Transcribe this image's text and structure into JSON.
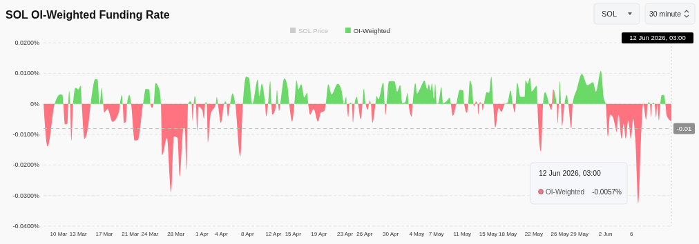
{
  "chart_data": {
    "type": "area",
    "title": "SOL OI-Weighted Funding Rate",
    "annotations": [
      "SOL",
      "30 minute",
      "12 Jun 2026, 03:00",
      "-0.0057%"
    ],
    "legend": "top",
    "grid": "y",
    "xlim": [
      "2026-03-07T16:00",
      "2026-06-12T03:00"
    ],
    "xticks": [
      {
        "value": "2026-03-10",
        "label": "10 Mar"
      },
      {
        "value": "2026-03-13",
        "label": "13 Mar"
      },
      {
        "value": "2026-03-17",
        "label": "17 Mar"
      },
      {
        "value": "2026-03-21",
        "label": "21 Mar"
      },
      {
        "value": "2026-03-24",
        "label": "24 Mar"
      },
      {
        "value": "2026-03-28",
        "label": "28 Mar"
      },
      {
        "value": "2026-04-01",
        "label": "1 Apr"
      },
      {
        "value": "2026-04-04",
        "label": "4 Apr"
      },
      {
        "value": "2026-04-08",
        "label": "8 Apr"
      },
      {
        "value": "2026-04-12",
        "label": "12 Apr"
      },
      {
        "value": "2026-04-15",
        "label": "15 Apr"
      },
      {
        "value": "2026-04-19",
        "label": "19 Apr"
      },
      {
        "value": "2026-04-23",
        "label": "23 Apr"
      },
      {
        "value": "2026-04-26",
        "label": "26 Apr"
      },
      {
        "value": "2026-04-30",
        "label": "30 Apr"
      },
      {
        "value": "2026-05-04",
        "label": "4 May"
      },
      {
        "value": "2026-05-07",
        "label": "7 May"
      },
      {
        "value": "2026-05-11",
        "label": "11 May"
      },
      {
        "value": "2026-05-15",
        "label": "15 May"
      },
      {
        "value": "2026-05-18",
        "label": "18 May"
      },
      {
        "value": "2026-05-22",
        "label": "22 May"
      },
      {
        "value": "2026-05-26",
        "label": "26 May"
      },
      {
        "value": "2026-05-29",
        "label": "29 May"
      },
      {
        "value": "2026-06-02",
        "label": "2 Jun"
      },
      {
        "value": "2026-06-06",
        "label": "6"
      }
    ],
    "ylim": [
      -0.04,
      0.02
    ],
    "yticks": [
      {
        "value": 0.02,
        "label": "0.0200%"
      },
      {
        "value": 0.01,
        "label": "0.0100%"
      },
      {
        "value": 0,
        "label": "0%"
      },
      {
        "value": -0.01,
        "label": "-0.0100%"
      },
      {
        "value": -0.02,
        "label": "-0.0200%"
      },
      {
        "value": -0.03,
        "label": "-0.0300%"
      },
      {
        "value": -0.04,
        "label": "-0.0400%"
      }
    ],
    "ref_lines": [
      {
        "axis": "y",
        "value": -0.0081,
        "label": "-0.01",
        "color": "#bbbbbb",
        "line_style": "dashed"
      },
      {
        "axis": "x",
        "value": "2026-06-12T03:00",
        "label": "12 Jun 2026, 03:00",
        "color": "#cccccc",
        "line_style": "dotted"
      }
    ],
    "x": [
      "2026-03-07T16:00",
      "2026-03-08T07:00",
      "2026-03-09T09:00",
      "2026-03-10T06:00",
      "2026-03-10T14:00",
      "2026-03-10T17:00",
      "2026-03-10T23:00",
      "2026-03-11T08:00",
      "2026-03-11T11:00",
      "2026-03-11T15:00",
      "2026-03-11T18:00",
      "2026-03-11T23:00",
      "2026-03-12T05:00",
      "2026-03-12T14:00",
      "2026-03-13T00:00",
      "2026-03-13T09:00",
      "2026-03-13T13:00",
      "2026-03-13T23:00",
      "2026-03-14T14:00",
      "2026-03-14T22:00",
      "2026-03-15T15:00",
      "2026-03-15T23:00",
      "2026-03-16T07:00",
      "2026-03-16T15:00",
      "2026-03-16T20:00",
      "2026-03-17T00:00",
      "2026-03-17T12:00",
      "2026-03-18T07:00",
      "2026-03-19T06:00",
      "2026-03-19T10:00",
      "2026-03-19T16:00",
      "2026-03-19T20:00",
      "2026-03-20T01:00",
      "2026-03-20T08:00",
      "2026-03-20T12:00",
      "2026-03-20T21:00",
      "2026-03-21T03:00",
      "2026-03-21T16:00",
      "2026-03-22T04:00",
      "2026-03-22T23:00",
      "2026-03-23T09:00",
      "2026-03-23T22:00",
      "2026-03-24T02:00",
      "2026-03-24T08:00",
      "2026-03-24T14:00",
      "2026-03-24T21:00",
      "2026-03-25T11:00",
      "2026-03-25T17:00",
      "2026-03-25T22:00",
      "2026-03-26T15:00",
      "2026-03-27T06:00",
      "2026-03-27T17:00",
      "2026-03-28T06:00",
      "2026-03-28T14:00",
      "2026-03-29T04:00",
      "2026-03-29T09:00",
      "2026-03-29T15:00",
      "2026-03-29T21:00",
      "2026-03-30T06:00",
      "2026-03-30T10:00",
      "2026-03-30T14:00",
      "2026-03-30T18:00",
      "2026-03-30T22:00",
      "2026-03-31T02:00",
      "2026-03-31T07:00",
      "2026-03-31T11:00",
      "2026-04-01T01:00",
      "2026-04-01T08:00",
      "2026-04-01T12:00",
      "2026-04-01T15:00",
      "2026-04-01T18:00",
      "2026-04-01T22:00",
      "2026-04-02T08:00",
      "2026-04-03T03:00",
      "2026-04-03T07:00",
      "2026-04-03T11:00",
      "2026-04-03T22:00",
      "2026-04-04T10:00",
      "2026-04-04T14:00",
      "2026-04-04T19:00",
      "2026-04-05T00:00",
      "2026-04-05T08:00",
      "2026-04-05T17:00",
      "2026-04-06T03:00",
      "2026-04-06T22:00",
      "2026-04-07T07:00",
      "2026-04-07T19:00",
      "2026-04-08T05:00",
      "2026-04-08T18:00",
      "2026-04-09T14:00",
      "2026-04-09T20:00",
      "2026-04-10T05:00",
      "2026-04-10T13:00",
      "2026-04-10T17:00",
      "2026-04-10T21:00",
      "2026-04-11T04:00",
      "2026-04-11T12:00",
      "2026-04-11T16:00",
      "2026-04-11T20:00",
      "2026-04-12T06:00",
      "2026-04-12T09:00",
      "2026-04-12T13:00",
      "2026-04-12T17:00",
      "2026-04-12T21:00",
      "2026-04-13T01:00",
      "2026-04-13T16:00",
      "2026-04-14T04:00",
      "2026-04-14T10:00",
      "2026-04-14T21:00",
      "2026-04-15T05:00",
      "2026-04-15T13:00",
      "2026-04-15T20:00",
      "2026-04-16T06:00",
      "2026-04-16T18:00",
      "2026-04-17T04:00",
      "2026-04-17T08:00",
      "2026-04-17T15:00",
      "2026-04-18T04:00",
      "2026-04-18T20:00",
      "2026-04-19T07:00",
      "2026-04-19T19:00",
      "2026-04-20T01:00",
      "2026-04-20T10:00",
      "2026-04-20T22:00",
      "2026-04-21T21:00",
      "2026-04-22T11:00",
      "2026-04-22T20:00",
      "2026-04-23T04:00",
      "2026-04-23T06:00",
      "2026-04-23T12:00",
      "2026-04-23T16:00",
      "2026-04-23T20:00",
      "2026-04-24T01:00",
      "2026-04-24T05:00",
      "2026-04-24T11:00",
      "2026-04-24T19:00",
      "2026-04-25T00:00",
      "2026-04-25T10:00",
      "2026-04-25T16:00",
      "2026-04-25T21:00",
      "2026-04-26T04:00",
      "2026-04-26T11:00",
      "2026-04-26T19:00",
      "2026-04-26T23:00",
      "2026-04-27T05:00",
      "2026-04-27T16:00",
      "2026-04-27T20:00",
      "2026-04-28T03:00",
      "2026-04-28T21:00",
      "2026-04-29T02:00",
      "2026-04-29T05:00",
      "2026-04-29T09:00",
      "2026-04-29T18:00",
      "2026-04-30T14:00",
      "2026-05-01T00:00",
      "2026-05-01T11:00",
      "2026-05-01T19:00",
      "2026-05-02T06:00",
      "2026-05-02T14:00",
      "2026-05-02T18:00",
      "2026-05-03T05:00",
      "2026-05-03T09:00",
      "2026-05-03T19:00",
      "2026-05-04T01:00",
      "2026-05-04T14:00",
      "2026-05-05T05:00",
      "2026-05-05T15:00",
      "2026-05-05T21:00",
      "2026-05-06T03:00",
      "2026-05-06T08:00",
      "2026-05-06T16:00",
      "2026-05-06T20:00",
      "2026-05-07T02:00",
      "2026-05-07T08:00",
      "2026-05-07T19:00",
      "2026-05-08T01:00",
      "2026-05-08T13:00",
      "2026-05-09T02:00",
      "2026-05-09T06:00",
      "2026-05-09T13:00",
      "2026-05-10T02:00",
      "2026-05-10T15:00",
      "2026-05-11T03:00",
      "2026-05-11T07:00",
      "2026-05-11T17:00",
      "2026-05-11T22:00",
      "2026-05-12T04:00",
      "2026-05-12T12:00",
      "2026-05-12T17:00",
      "2026-05-12T19:00",
      "2026-05-13T03:00",
      "2026-05-13T08:00",
      "2026-05-13T11:00",
      "2026-05-13T17:00",
      "2026-05-14T00:00",
      "2026-05-14T03:00",
      "2026-05-14T08:00",
      "2026-05-14T18:00",
      "2026-05-15T03:00",
      "2026-05-15T11:00",
      "2026-05-15T18:00",
      "2026-05-16T02:00",
      "2026-05-16T14:00",
      "2026-05-17T00:00",
      "2026-05-17T13:00",
      "2026-05-17T23:00",
      "2026-05-18T10:00",
      "2026-05-18T18:00",
      "2026-05-19T02:00",
      "2026-05-19T05:00",
      "2026-05-19T10:00",
      "2026-05-19T23:00",
      "2026-05-20T14:00",
      "2026-05-20T17:00",
      "2026-05-21T01:00",
      "2026-05-21T10:00",
      "2026-05-21T16:00",
      "2026-05-22T11:00",
      "2026-05-22T13:00",
      "2026-05-23T02:00",
      "2026-05-23T10:00",
      "2026-05-23T17:00",
      "2026-05-24T03:00",
      "2026-05-24T09:00",
      "2026-05-24T17:00",
      "2026-05-24T23:00",
      "2026-05-25T12:00",
      "2026-05-25T16:00",
      "2026-05-25T20:00",
      "2026-05-26T00:00",
      "2026-05-26T04:00",
      "2026-05-26T08:00",
      "2026-05-26T17:00",
      "2026-05-27T01:00",
      "2026-05-27T07:00",
      "2026-05-27T18:00",
      "2026-05-27T23:00",
      "2026-05-28T14:00",
      "2026-05-29T09:00",
      "2026-05-30T06:00",
      "2026-05-31T02:00",
      "2026-05-31T13:00",
      "2026-06-01T07:00",
      "2026-06-01T18:00",
      "2026-06-02T01:00",
      "2026-06-02T09:00",
      "2026-06-02T17:00",
      "2026-06-03T03:00",
      "2026-06-03T12:00",
      "2026-06-03T17:00",
      "2026-06-04T00:00",
      "2026-06-04T12:00",
      "2026-06-04T19:00",
      "2026-06-05T03:00",
      "2026-06-05T12:00",
      "2026-06-05T22:00",
      "2026-06-06T06:00",
      "2026-06-06T14:00",
      "2026-06-07T01:00",
      "2026-06-07T11:00",
      "2026-06-07T19:00",
      "2026-06-08T06:00",
      "2026-06-08T12:00",
      "2026-06-08T16:00",
      "2026-06-08T20:00",
      "2026-06-09T00:00",
      "2026-06-09T04:00",
      "2026-06-09T09:00",
      "2026-06-09T13:00",
      "2026-06-09T19:00",
      "2026-06-09T23:00",
      "2026-06-10T05:00",
      "2026-06-10T10:00",
      "2026-06-10T16:00",
      "2026-06-11T00:00",
      "2026-06-11T05:00",
      "2026-06-11T10:00",
      "2026-06-12T03:00"
    ],
    "series": [
      {
        "name": "SOL Price",
        "color": "#cccccc",
        "values": [
          null,
          null,
          null,
          null,
          null,
          null,
          null,
          null,
          null,
          null,
          null,
          null,
          null,
          null,
          null,
          null,
          null,
          null,
          null,
          null,
          null,
          null,
          null,
          null,
          null,
          null,
          null,
          null,
          null,
          null,
          null,
          null,
          null,
          null,
          null,
          null,
          null,
          null,
          null,
          null,
          null,
          null,
          null,
          null,
          null,
          null,
          null,
          null,
          null,
          null,
          null,
          null,
          null,
          null,
          null,
          null,
          null,
          null,
          null,
          null,
          null,
          null,
          null,
          null,
          null,
          null,
          null,
          null,
          null,
          null,
          null,
          null,
          null,
          null,
          null,
          null,
          null,
          null,
          null,
          null,
          null,
          null,
          null,
          null,
          null,
          null,
          null,
          null,
          null,
          null,
          null,
          null,
          null,
          null,
          null,
          null,
          null,
          null,
          null,
          null,
          null,
          null,
          null,
          null,
          null,
          null,
          null,
          null,
          null,
          null,
          null,
          null,
          null,
          null,
          null,
          null,
          null,
          null,
          null,
          null,
          null,
          null,
          null,
          null,
          null,
          null,
          null,
          null,
          null,
          null,
          null,
          null,
          null,
          null,
          null,
          null,
          null,
          null,
          null,
          null,
          null,
          null,
          null,
          null,
          null,
          null,
          null,
          null,
          null,
          null,
          null,
          null,
          null,
          null,
          null,
          null,
          null,
          null,
          null,
          null,
          null,
          null,
          null,
          null,
          null,
          null,
          null,
          null,
          null,
          null,
          null,
          null,
          null,
          null,
          null,
          null,
          null,
          null,
          null,
          null,
          null,
          null,
          null,
          null,
          null,
          null,
          null,
          null,
          null,
          null,
          null,
          null,
          null,
          null,
          null,
          null,
          null,
          null,
          null,
          null,
          null,
          null,
          null,
          null,
          null,
          null,
          null,
          null,
          null,
          null,
          null,
          null,
          null,
          null,
          null,
          null,
          null,
          null,
          null,
          null,
          null,
          null,
          null,
          null,
          null,
          null,
          null,
          null,
          null,
          null,
          null,
          null,
          null,
          null,
          null,
          null,
          null,
          null,
          null,
          null,
          null,
          null,
          null,
          null,
          null,
          null,
          null,
          null,
          null,
          null,
          null,
          null,
          null,
          null,
          null,
          null,
          null,
          null,
          null,
          null,
          null,
          null,
          null,
          null,
          null,
          null,
          null,
          null,
          null,
          null,
          null,
          null,
          null,
          null,
          null,
          null,
          null,
          null
        ]
      },
      {
        "name": "OI-Weighted",
        "color": "#6bd967",
        "colors": [
          "#ff7381",
          "#ff7381",
          "#6bd967",
          "#6bd967",
          "#6bd967",
          "#ff7381",
          "#ff7381",
          "#ff7381",
          "#6bd967",
          "#6bd967",
          "#ff7381",
          "#ff7381",
          "#6bd967",
          "#6bd967",
          "#6bd967",
          "#6bd967",
          "#ff7381",
          "#ff7381",
          "#ff7381",
          "#6bd967",
          "#6bd967",
          "#6bd967",
          "#6bd967",
          "#6bd967",
          "#ff7381",
          "#ff7381",
          "#ff7381",
          "#ff7381",
          "#ff7381",
          "#6bd967",
          "#6bd967",
          "#ff7381",
          "#ff7381",
          "#ff7381",
          "#6bd967",
          "#6bd967",
          "#ff7381",
          "#ff7381",
          "#ff7381",
          "#6bd967",
          "#6bd967",
          "#6bd967",
          "#ff7381",
          "#ff7381",
          "#6bd967",
          "#6bd967",
          "#6bd967",
          "#ff7381",
          "#ff7381",
          "#ff7381",
          "#ff7381",
          "#ff7381",
          "#ff7381",
          "#ff7381",
          "#ff7381",
          "#ff7381",
          "#ff7381",
          "#6bd967",
          "#6bd967",
          "#ff7381",
          "#ff7381",
          "#6bd967",
          "#6bd967",
          "#ff7381",
          "#ff7381",
          "#ff7381",
          "#ff7381",
          "#ff7381",
          "#6bd967",
          "#6bd967",
          "#ff7381",
          "#ff7381",
          "#ff7381",
          "#6bd967",
          "#6bd967",
          "#ff7381",
          "#ff7381",
          "#6bd967",
          "#6bd967",
          "#ff7381",
          "#ff7381",
          "#6bd967",
          "#6bd967",
          "#ff7381",
          "#ff7381",
          "#6bd967",
          "#6bd967",
          "#6bd967",
          "#6bd967",
          "#6bd967",
          "#6bd967",
          "#6bd967",
          "#6bd967",
          "#ff7381",
          "#ff7381",
          "#6bd967",
          "#6bd967",
          "#ff7381",
          "#ff7381",
          "#ff7381",
          "#6bd967",
          "#6bd967",
          "#ff7381",
          "#ff7381",
          "#6bd967",
          "#6bd967",
          "#6bd967",
          "#ff7381",
          "#ff7381",
          "#6bd967",
          "#6bd967",
          "#6bd967",
          "#6bd967",
          "#6bd967",
          "#6bd967",
          "#ff7381",
          "#ff7381",
          "#ff7381",
          "#ff7381",
          "#ff7381",
          "#ff7381",
          "#6bd967",
          "#6bd967",
          "#6bd967",
          "#6bd967",
          "#6bd967",
          "#6bd967",
          "#6bd967",
          "#ff7381",
          "#ff7381",
          "#6bd967",
          "#6bd967",
          "#ff7381",
          "#ff7381",
          "#6bd967",
          "#6bd967",
          "#ff7381",
          "#ff7381",
          "#6bd967",
          "#6bd967",
          "#ff7381",
          "#ff7381",
          "#6bd967",
          "#ff7381",
          "#ff7381",
          "#6bd967",
          "#6bd967",
          "#6bd967",
          "#6bd967",
          "#ff7381",
          "#ff7381",
          "#6bd967",
          "#6bd967",
          "#6bd967",
          "#6bd967",
          "#6bd967",
          "#6bd967",
          "#6bd967",
          "#6bd967",
          "#ff7381",
          "#ff7381",
          "#6bd967",
          "#6bd967",
          "#6bd967",
          "#6bd967",
          "#6bd967",
          "#6bd967",
          "#6bd967",
          "#6bd967",
          "#6bd967",
          "#6bd967",
          "#6bd967",
          "#6bd967",
          "#6bd967",
          "#6bd967",
          "#6bd967",
          "#6bd967",
          "#6bd967",
          "#ff7381",
          "#ff7381",
          "#6bd967",
          "#6bd967",
          "#6bd967",
          "#ff7381",
          "#ff7381",
          "#6bd967",
          "#6bd967",
          "#6bd967",
          "#ff7381",
          "#ff7381",
          "#6bd967",
          "#ff7381",
          "#ff7381",
          "#6bd967",
          "#ff7381",
          "#ff7381",
          "#6bd967",
          "#6bd967",
          "#6bd967",
          "#6bd967",
          "#ff7381",
          "#ff7381",
          "#ff7381",
          "#ff7381",
          "#6bd967",
          "#6bd967",
          "#6bd967",
          "#ff7381",
          "#ff7381",
          "#6bd967",
          "#6bd967",
          "#6bd967",
          "#6bd967",
          "#6bd967",
          "#6bd967",
          "#6bd967",
          "#6bd967",
          "#6bd967",
          "#ff7381",
          "#ff7381",
          "#6bd967",
          "#6bd967",
          "#6bd967",
          "#ff7381",
          "#ff7381",
          "#6bd967",
          "#ff7381",
          "#ff7381",
          "#6bd967",
          "#6bd967",
          "#ff7381",
          "#ff7381",
          "#6bd967",
          "#6bd967",
          "#ff7381",
          "#ff7381",
          "#6bd967",
          "#6bd967",
          "#6bd967",
          "#6bd967",
          "#6bd967",
          "#6bd967",
          "#6bd967",
          "#6bd967",
          "#ff7381",
          "#ff7381",
          "#ff7381",
          "#ff7381",
          "#ff7381",
          "#ff7381",
          "#ff7381",
          "#ff7381",
          "#ff7381",
          "#ff7381",
          "#ff7381",
          "#ff7381",
          "#ff7381",
          "#ff7381",
          "#ff7381",
          "#ff7381",
          "#ff7381",
          "#ff7381",
          "#6bd967",
          "#6bd967",
          "#ff7381",
          "#ff7381",
          "#6bd967",
          "#6bd967",
          "#ff7381",
          "#ff7381",
          "#ff7381",
          "#ff7381",
          "#6bd967",
          "#6bd967",
          "#6bd967",
          "#ff7381",
          "#ff7381",
          "#ff7381"
        ],
        "values": [
          0,
          -0.0139,
          0,
          0.0031,
          0.0029,
          0,
          -0.0067,
          -0.0065,
          0,
          0.0044,
          0,
          -0.012,
          0,
          0.0053,
          0.0047,
          0.0059,
          0,
          -0.0114,
          -0.0065,
          0,
          0.0081,
          0.008,
          0,
          0.0053,
          0,
          -0.0028,
          -0.0017,
          -0.0059,
          -0.0028,
          0,
          0.0029,
          0,
          -0.0062,
          -0.0058,
          0,
          0.0029,
          0,
          -0.012,
          -0.0118,
          0,
          0.0049,
          0.0047,
          0,
          -0.0013,
          0,
          0.0068,
          0.0047,
          0,
          -0.0167,
          -0.0111,
          -0.0289,
          -0.0107,
          -0.0111,
          -0.0238,
          -0.008,
          -0.008,
          -0.0217,
          0,
          0.0008,
          0,
          -0.0056,
          0,
          0.0026,
          0,
          -0.0089,
          -0.0009,
          -0.002,
          -0.0049,
          0,
          0.0006,
          0,
          -0.0126,
          -0.0035,
          0,
          0.0023,
          0,
          -0.0062,
          0,
          0.0008,
          0,
          -0.0041,
          0,
          0.0034,
          0,
          -0.0171,
          0,
          0.0089,
          0.0085,
          0,
          0.008,
          0.0025,
          0.0066,
          0.0032,
          0,
          -0.0041,
          0,
          0.0074,
          0,
          -0.0035,
          -0.002,
          0,
          0.0046,
          0,
          -0.0023,
          0,
          0.0083,
          0.0055,
          0,
          -0.0058,
          0,
          0.0077,
          0.0047,
          0.0064,
          0.0021,
          0.0036,
          0,
          -0.0035,
          -0.0017,
          -0.0058,
          -0.0028,
          -0.0024,
          0,
          0.0064,
          0.0031,
          0.0066,
          0.0044,
          0,
          0.0023,
          0,
          -0.0043,
          0,
          0.0004,
          0,
          -0.0062,
          0,
          0.0023,
          0,
          -0.005,
          0,
          0.005,
          0,
          -0.0019,
          0.0011,
          0,
          -0.0062,
          0,
          0.0026,
          0.0015,
          0.007,
          0,
          -0.0037,
          0,
          0.0074,
          0.0074,
          0.004,
          0.0061,
          0.0002,
          0.0006,
          0.0036,
          0,
          -0.0041,
          0,
          0.0068,
          0.0034,
          0.0053,
          0.0076,
          0.0047,
          0.0064,
          0.0044,
          0.0068,
          0.0016,
          0.0066,
          0,
          0.0002,
          0.0055,
          0.0002,
          0.0008,
          0.002,
          0,
          -0.0039,
          0,
          0.0046,
          0.0044,
          0,
          -0.0029,
          0,
          0.0076,
          0.0055,
          0,
          -0.0009,
          0.0008,
          0,
          -0.0035,
          0.0006,
          0,
          -0.0022,
          0,
          0.0038,
          0.0036,
          0.0089,
          0,
          -0.0077,
          -0.0013,
          -0.0026,
          0,
          0.0004,
          0.0044,
          0,
          -0.0029,
          0,
          0.007,
          0.0023,
          0.0023,
          0.0077,
          0.0066,
          0.0086,
          0.0041,
          0.0059,
          0,
          -0.0156,
          0,
          0.0038,
          0.0017,
          -0.0005,
          -0.002,
          0.0047,
          0,
          -0.0064,
          0,
          0.0075,
          0,
          -0.0073,
          0,
          0.0029,
          0,
          -0.008,
          0,
          0.0047,
          0.0098,
          0.0061,
          0.0071,
          0.004,
          0.0108,
          0.0017,
          0,
          -0.0107,
          -0.0035,
          -0.0043,
          -0.0073,
          -0.0092,
          -0.0035,
          -0.0114,
          -0.0065,
          -0.0114,
          -0.0054,
          -0.0114,
          -0.005,
          -0.0114,
          -0.0325,
          -0.0114,
          0,
          -0.0052,
          0,
          0.0006,
          0,
          -0.0043,
          0,
          0.0004,
          0,
          -0.0044,
          0,
          -0.0054,
          0,
          0.0029,
          0.0029,
          0,
          -0.0039,
          -0.0057
        ]
      }
    ]
  }
}
